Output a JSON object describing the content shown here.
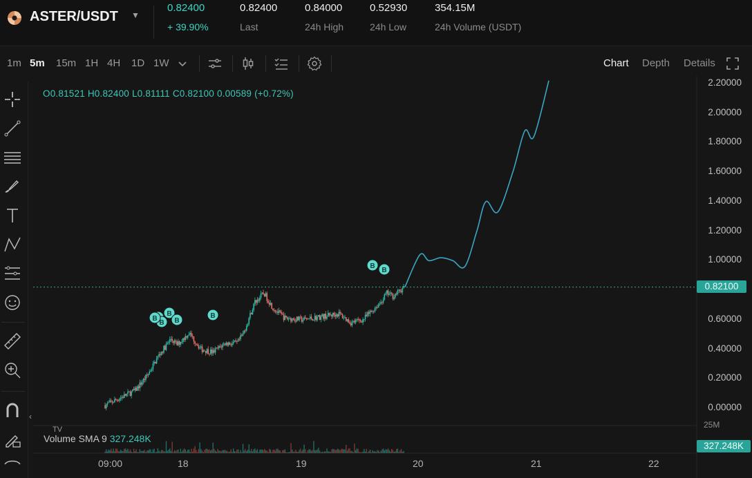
{
  "ticker": {
    "pair": "ASTER/USDT",
    "last_price": "0.82400",
    "change_pct": "+ 39.90%",
    "stats": [
      {
        "value": "0.82400",
        "label": "Last"
      },
      {
        "value": "0.84000",
        "label": "24h High"
      },
      {
        "value": "0.52930",
        "label": "24h Low"
      },
      {
        "value": "354.15M",
        "label": "24h Volume (USDT)"
      }
    ]
  },
  "toolbar": {
    "timeframes": [
      "1m",
      "5m",
      "15m",
      "1H",
      "4H",
      "1D",
      "1W"
    ],
    "active_timeframe": "5m",
    "icons": [
      "chevron-down-icon",
      "indicators-icon",
      "candle-type-icon",
      "list-icon",
      "settings-icon"
    ],
    "view_tabs": [
      "Chart",
      "Depth",
      "Details"
    ],
    "active_view": "Chart"
  },
  "drawing_tools": [
    "crosshair-icon",
    "trendline-icon",
    "horizontal-lines-icon",
    "brush-icon",
    "text-icon",
    "pattern-icon",
    "prediction-icon",
    "emoji-icon",
    "ruler-icon",
    "zoom-in-icon",
    "magnet-icon",
    "lock-pencil-icon"
  ],
  "ohlc": {
    "o": "O0.81521",
    "h": "H0.82400",
    "l": "L0.81111",
    "c": "C0.82100",
    "chg": "0.00589 (+0.72%)"
  },
  "price_axis": [
    "2.20000",
    "2.00000",
    "1.80000",
    "1.60000",
    "1.40000",
    "1.20000",
    "1.00000",
    "0.80000",
    "0.60000",
    "0.40000",
    "0.20000",
    "0.00000"
  ],
  "current_price_tag": "0.82100",
  "volume": {
    "label": "Volume SMA 9",
    "value": "327.248K",
    "tag": "327.248K",
    "max_label": "25M"
  },
  "time_axis": [
    "09:00",
    "18",
    "19",
    "20",
    "21",
    "22"
  ],
  "buy_marker_label": "B",
  "colors": {
    "up": "#2ebaa8",
    "down": "#e3726a",
    "accent": "#3fd5c6",
    "projection": "#3aa7c4",
    "background": "#161616"
  },
  "chart_data": {
    "type": "line",
    "price_ylim": [
      0.0,
      2.2
    ],
    "current_price": 0.821,
    "historical_path": [
      [
        0,
        0.02
      ],
      [
        6,
        0.08
      ],
      [
        10,
        0.12
      ],
      [
        14,
        0.22
      ],
      [
        18,
        0.36
      ],
      [
        22,
        0.47
      ],
      [
        24,
        0.43
      ],
      [
        28,
        0.51
      ],
      [
        32,
        0.4
      ],
      [
        36,
        0.38
      ],
      [
        40,
        0.44
      ],
      [
        44,
        0.44
      ],
      [
        46,
        0.5
      ],
      [
        50,
        0.72
      ],
      [
        53,
        0.78
      ],
      [
        56,
        0.68
      ],
      [
        60,
        0.61
      ],
      [
        66,
        0.6
      ],
      [
        72,
        0.62
      ],
      [
        78,
        0.64
      ],
      [
        82,
        0.58
      ],
      [
        86,
        0.6
      ],
      [
        88,
        0.64
      ],
      [
        92,
        0.72
      ],
      [
        94,
        0.78
      ],
      [
        96,
        0.76
      ],
      [
        100,
        0.82
      ]
    ],
    "projection_path": [
      [
        100,
        0.82
      ],
      [
        105,
        1.04
      ],
      [
        108,
        1.0
      ],
      [
        112,
        1.02
      ],
      [
        116,
        1.0
      ],
      [
        120,
        0.96
      ],
      [
        124,
        1.2
      ],
      [
        127,
        1.4
      ],
      [
        131,
        1.33
      ],
      [
        136,
        1.6
      ],
      [
        140,
        1.88
      ],
      [
        143,
        1.84
      ],
      [
        148,
        2.22
      ]
    ],
    "buy_markers_at": [
      22,
      23,
      24,
      25,
      26,
      34,
      93,
      95
    ]
  }
}
